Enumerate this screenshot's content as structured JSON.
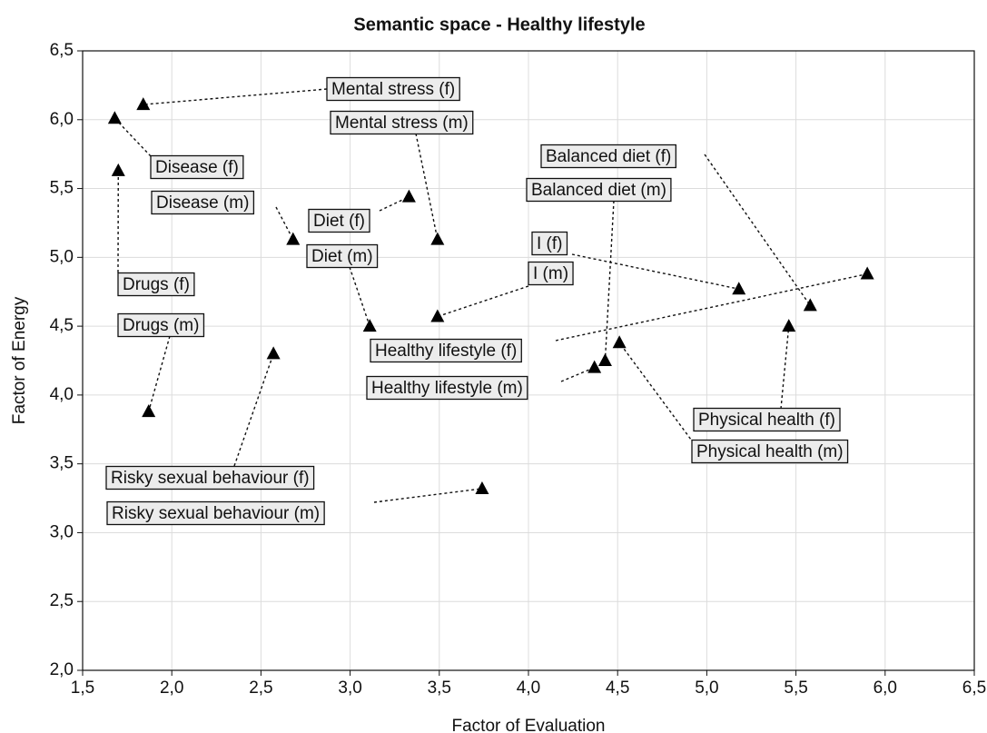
{
  "chart_data": {
    "type": "scatter",
    "title": "Semantic space - Healthy lifestyle",
    "x_label": "Factor of Evaluation",
    "y_label": "Factor of Energy",
    "color": "#000000",
    "grid": true,
    "xlim": [
      1.5,
      6.5
    ],
    "ylim": [
      2.0,
      6.5
    ],
    "xticks": [
      {
        "value": 1.5,
        "label": "1,5"
      },
      {
        "value": 2.0,
        "label": "2,0"
      },
      {
        "value": 2.5,
        "label": "2,5"
      },
      {
        "value": 3.0,
        "label": "3,0"
      },
      {
        "value": 3.5,
        "label": "3,5"
      },
      {
        "value": 4.0,
        "label": "4,0"
      },
      {
        "value": 4.5,
        "label": "4,5"
      },
      {
        "value": 5.0,
        "label": "5,0"
      },
      {
        "value": 5.5,
        "label": "5,5"
      },
      {
        "value": 6.0,
        "label": "6,0"
      },
      {
        "value": 6.5,
        "label": "6,5"
      }
    ],
    "yticks": [
      {
        "value": 2.0,
        "label": "2,0"
      },
      {
        "value": 2.5,
        "label": "2,5"
      },
      {
        "value": 3.0,
        "label": "3,0"
      },
      {
        "value": 3.5,
        "label": "3,5"
      },
      {
        "value": 4.0,
        "label": "4,0"
      },
      {
        "value": 4.5,
        "label": "4,5"
      },
      {
        "value": 5.0,
        "label": "5,0"
      },
      {
        "value": 5.5,
        "label": "5,5"
      },
      {
        "value": 6.0,
        "label": "6,0"
      },
      {
        "value": 6.5,
        "label": "6,5"
      }
    ],
    "point_labels": [
      "Mental stress (f)",
      "Disease (f)",
      "Drugs (f)",
      "Diet (f)",
      "Disease (m)",
      "Mental stress (m)",
      "I (f)",
      "Balanced diet (f)",
      "Healthy lifestyle (f)",
      "Diet (m)",
      "I (m)",
      "Physical health (f)",
      "Physical health (m)",
      "Balanced diet (m)",
      "Healthy lifestyle (m)",
      "Drugs (m)",
      "Risky sexual behaviour (f)",
      "Risky sexual behaviour (m)"
    ],
    "x": [
      1.84,
      1.68,
      1.7,
      3.33,
      2.68,
      3.49,
      5.18,
      5.58,
      5.9,
      3.11,
      3.49,
      5.46,
      4.51,
      4.43,
      4.37,
      1.87,
      2.57,
      3.74
    ],
    "values": [
      6.11,
      6.01,
      5.63,
      5.44,
      5.13,
      5.13,
      4.77,
      4.65,
      4.88,
      4.5,
      4.57,
      4.5,
      4.38,
      4.25,
      4.2,
      3.88,
      4.3,
      3.32
    ]
  }
}
